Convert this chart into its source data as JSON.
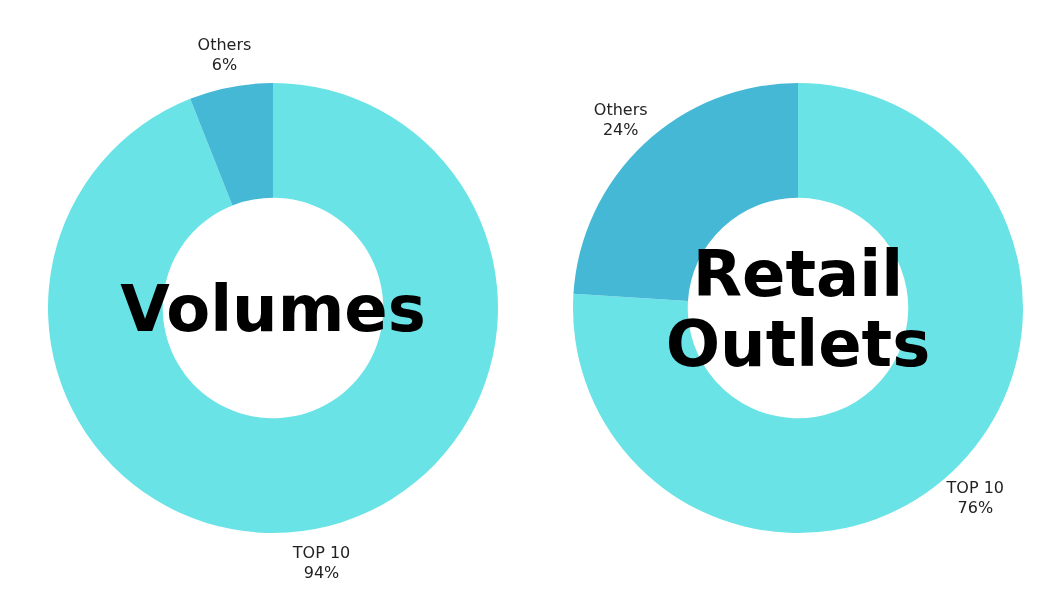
{
  "chart_data": [
    {
      "type": "donut",
      "title": "Volumes",
      "categories": [
        "TOP 10",
        "Others"
      ],
      "values": [
        94,
        6
      ],
      "colors": [
        "#6ae3e6",
        "#45b8d6"
      ],
      "value_labels": [
        "94%",
        "6%"
      ]
    },
    {
      "type": "donut",
      "title": "Retail Outlets",
      "categories": [
        "TOP 10",
        "Others"
      ],
      "values": [
        76,
        24
      ],
      "colors": [
        "#6ae3e6",
        "#45b8d6"
      ],
      "value_labels": [
        "76%",
        "24%"
      ]
    }
  ]
}
